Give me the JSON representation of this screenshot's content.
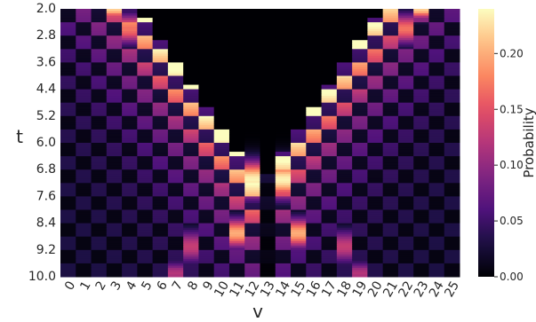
{
  "chart_data": {
    "type": "heatmap",
    "title": "",
    "xlabel": "v",
    "ylabel": "t",
    "x_ticks": [
      "0",
      "1",
      "2",
      "3",
      "4",
      "5",
      "6",
      "7",
      "8",
      "9",
      "10",
      "11",
      "12",
      "13",
      "14",
      "15",
      "16",
      "17",
      "18",
      "19",
      "20",
      "21",
      "22",
      "23",
      "24",
      "25"
    ],
    "y_ticks": [
      "2.0",
      "2.8",
      "3.6",
      "4.4",
      "5.2",
      "6.0",
      "6.8",
      "7.6",
      "8.4",
      "9.2",
      "10.0"
    ],
    "t_range": [
      2.0,
      10.0
    ],
    "colorbar": {
      "label": "Probability",
      "range": [
        0.0,
        0.24
      ],
      "ticks": [
        0.0,
        0.05,
        0.1,
        0.15,
        0.2
      ],
      "tick_labels": [
        "0.00",
        "0.05",
        "0.10",
        "0.15",
        "0.20"
      ],
      "colormap": "magma"
    },
    "description_of_values": "Probability of position v over time t for a walk starting at both edges (v=0 and v=25) and converging to the centre (v=12 and v=14) near t=7.2; alternating checkerboard parity pattern.",
    "peak_value": 0.24
  }
}
